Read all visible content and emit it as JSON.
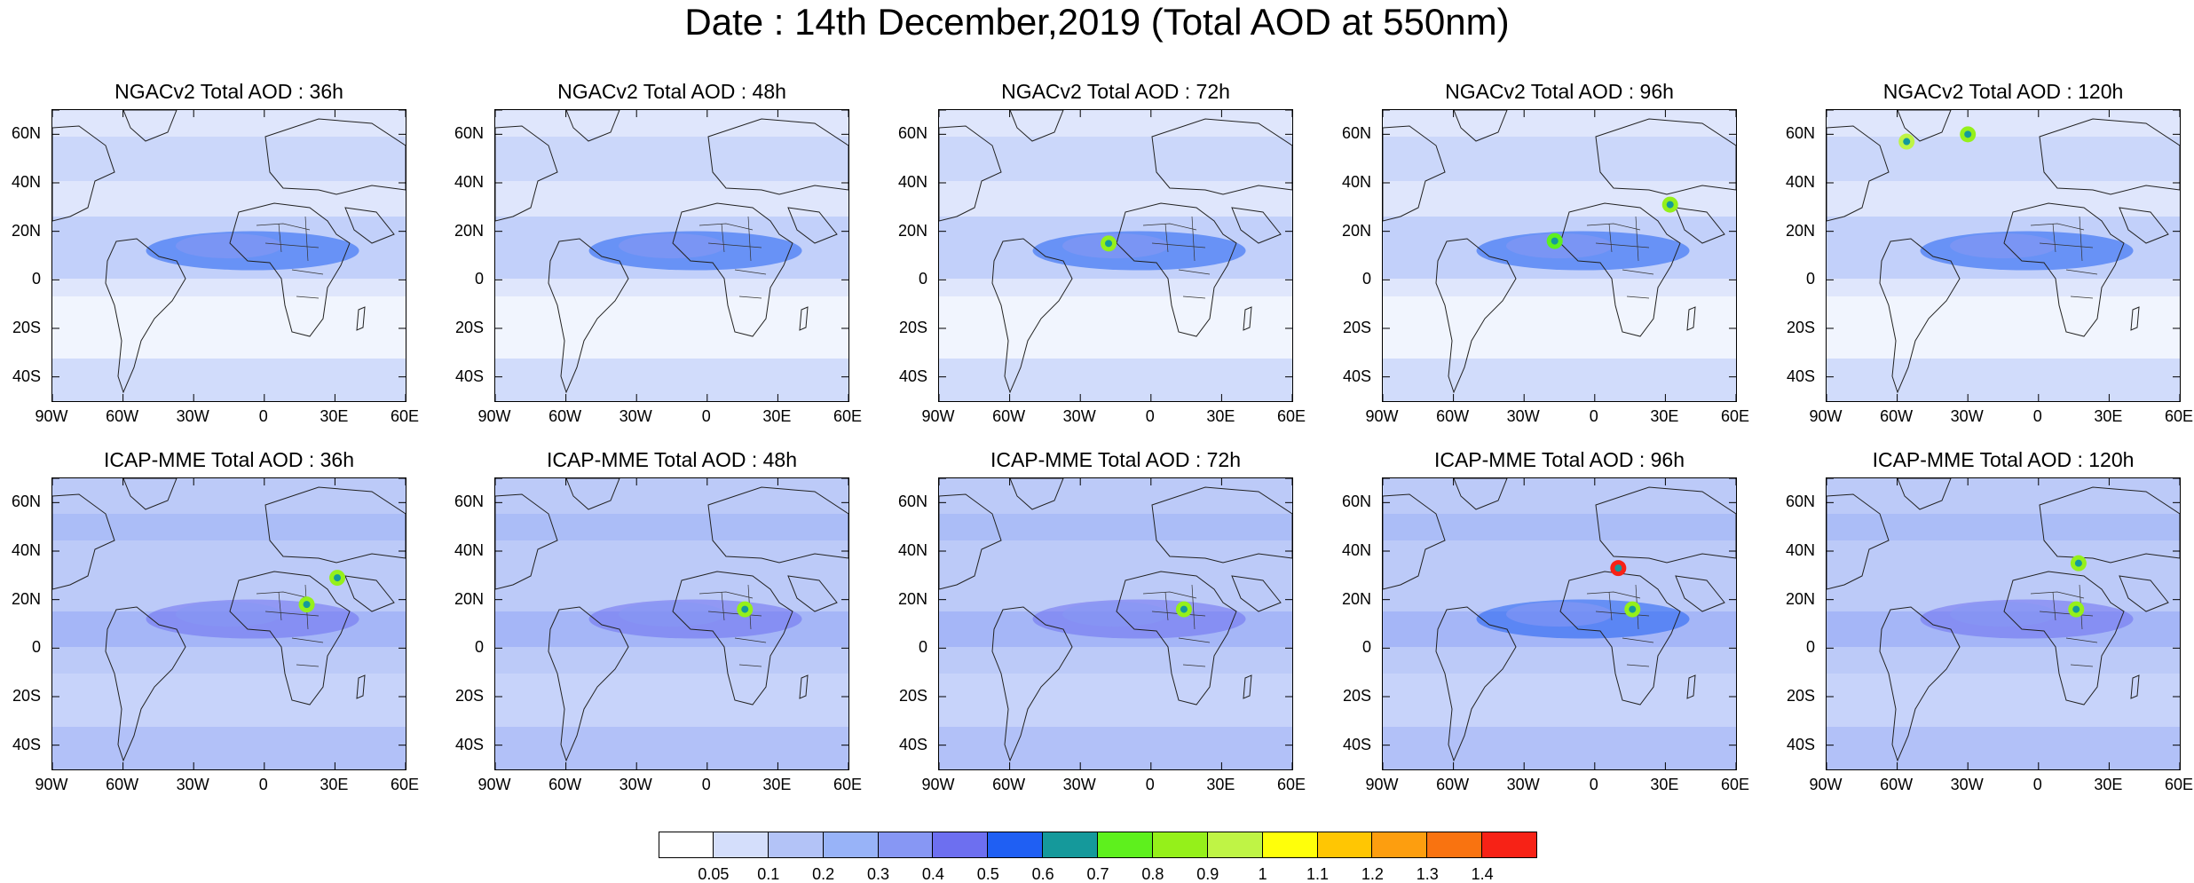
{
  "title": "Date : 14th December,2019 (Total AOD at 550nm)",
  "lat_ticks": [
    "60N",
    "40N",
    "20N",
    "0",
    "20S",
    "40S"
  ],
  "lon_ticks": [
    "90W",
    "60W",
    "30W",
    "0",
    "30E",
    "60E"
  ],
  "panels": [
    {
      "title": "NGACv2 Total AOD : 36h",
      "model": "NGACv2",
      "lead": "36h",
      "dust_level": "0.5",
      "hotspots": []
    },
    {
      "title": "NGACv2 Total AOD : 48h",
      "model": "NGACv2",
      "lead": "48h",
      "dust_level": "0.5",
      "hotspots": []
    },
    {
      "title": "NGACv2 Total AOD : 72h",
      "model": "NGACv2",
      "lead": "72h",
      "dust_level": "0.5",
      "hotspots": [
        {
          "lon": -18,
          "lat": 15,
          "value": 0.8
        }
      ]
    },
    {
      "title": "NGACv2 Total AOD : 96h",
      "model": "NGACv2",
      "lead": "96h",
      "dust_level": "0.5",
      "hotspots": [
        {
          "lon": -17,
          "lat": 16,
          "value": 0.7
        },
        {
          "lon": 32,
          "lat": 31,
          "value": 0.8
        }
      ]
    },
    {
      "title": "NGACv2 Total AOD : 120h",
      "model": "NGACv2",
      "lead": "120h",
      "dust_level": "0.5",
      "hotspots": [
        {
          "lon": -56,
          "lat": 57,
          "value": 0.9
        },
        {
          "lon": -30,
          "lat": 60,
          "value": 0.8
        }
      ]
    },
    {
      "title": "ICAP-MME Total AOD : 36h",
      "model": "ICAP-MME",
      "lead": "36h",
      "dust_level": "0.4",
      "hotspots": [
        {
          "lon": 18,
          "lat": 18,
          "value": 0.8
        },
        {
          "lon": 31,
          "lat": 29,
          "value": 0.8
        }
      ]
    },
    {
      "title": "ICAP-MME Total AOD : 48h",
      "model": "ICAP-MME",
      "lead": "48h",
      "dust_level": "0.4",
      "hotspots": [
        {
          "lon": 16,
          "lat": 16,
          "value": 0.8
        }
      ]
    },
    {
      "title": "ICAP-MME Total AOD : 72h",
      "model": "ICAP-MME",
      "lead": "72h",
      "dust_level": "0.4",
      "hotspots": [
        {
          "lon": 14,
          "lat": 16,
          "value": 0.8
        }
      ]
    },
    {
      "title": "ICAP-MME Total AOD : 96h",
      "model": "ICAP-MME",
      "lead": "96h",
      "dust_level": "0.5",
      "hotspots": [
        {
          "lon": 10,
          "lat": 33,
          "value": 1.4
        },
        {
          "lon": 16,
          "lat": 16,
          "value": 0.8
        }
      ]
    },
    {
      "title": "ICAP-MME Total AOD : 120h",
      "model": "ICAP-MME",
      "lead": "120h",
      "dust_level": "0.4",
      "hotspots": [
        {
          "lon": 17,
          "lat": 35,
          "value": 0.8
        },
        {
          "lon": 16,
          "lat": 16,
          "value": 0.8
        }
      ]
    }
  ],
  "colorbar": {
    "labels": [
      "0.05",
      "0.1",
      "0.2",
      "0.3",
      "0.4",
      "0.5",
      "0.6",
      "0.7",
      "0.8",
      "0.9",
      "1",
      "1.1",
      "1.2",
      "1.3",
      "1.4"
    ],
    "colors": [
      "#ffffff",
      "#d4defb",
      "#b3c3f7",
      "#98b3f8",
      "#8797f4",
      "#6d6ff0",
      "#1f5ff3",
      "#15999b",
      "#5ef01d",
      "#95f01a",
      "#bff445",
      "#ffff0a",
      "#ffc603",
      "#fd9e0f",
      "#f97310",
      "#f72216"
    ]
  }
}
